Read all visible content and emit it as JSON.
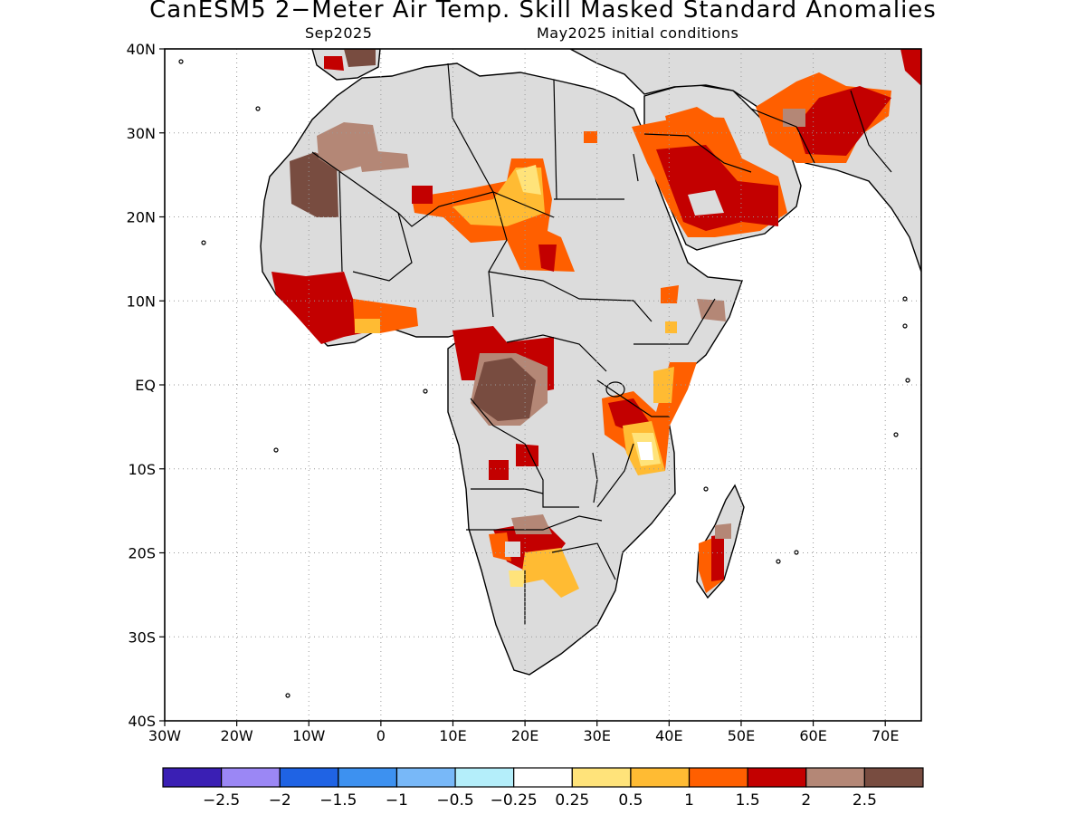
{
  "title": "CanESM5 2−Meter Air Temp. Skill Masked Standard Anomalies",
  "subtitle_left": "Sep2025",
  "subtitle_right": "May2025 initial conditions",
  "map": {
    "lon_range": [
      -30,
      75
    ],
    "lat_range": [
      -40,
      40
    ],
    "lat_ticks": [
      "40N",
      "30N",
      "20N",
      "10N",
      "EQ",
      "10S",
      "20S",
      "30S",
      "40S"
    ],
    "lon_ticks": [
      "30W",
      "20W",
      "10W",
      "0",
      "10E",
      "20E",
      "30E",
      "40E",
      "50E",
      "60E",
      "70E"
    ],
    "grid": "dotted",
    "land_masked_color": "#dcdcdc",
    "anomaly_regions": [
      {
        "region": "Sahara / Sahel belt",
        "level": "1 to 1.5"
      },
      {
        "region": "West Africa (Guinea coast)",
        "level": "1.5 to 2"
      },
      {
        "region": "Western Sahara / Mauritania",
        "level": "above 2.5"
      },
      {
        "region": "Arabian Peninsula",
        "level": "1.5 to 2"
      },
      {
        "region": "Iran / Pakistan",
        "level": "1.5 to 2"
      },
      {
        "region": "Central Africa (Congo basin)",
        "level": "above 2.5"
      },
      {
        "region": "East Africa (Tanzania / Kenya)",
        "level": "0.25 to 1.5"
      },
      {
        "region": "Southern Africa (Angola / Namibia / Botswana)",
        "level": "1.5 to 2"
      },
      {
        "region": "Madagascar",
        "level": "1 to 2"
      }
    ]
  },
  "colorbar": {
    "colors": [
      "#3a1fb4",
      "#9b87f5",
      "#1f63e4",
      "#3d91f0",
      "#78b8f8",
      "#b4eefa",
      "#ffffff",
      "#ffe37a",
      "#ffbb33",
      "#ff5f00",
      "#c30000",
      "#b48776",
      "#784c40"
    ],
    "labels": [
      "−2.5",
      "−2",
      "−1.5",
      "−1",
      "−0.5",
      "−0.25",
      "0.25",
      "0.5",
      "1",
      "1.5",
      "2",
      "2.5"
    ]
  }
}
